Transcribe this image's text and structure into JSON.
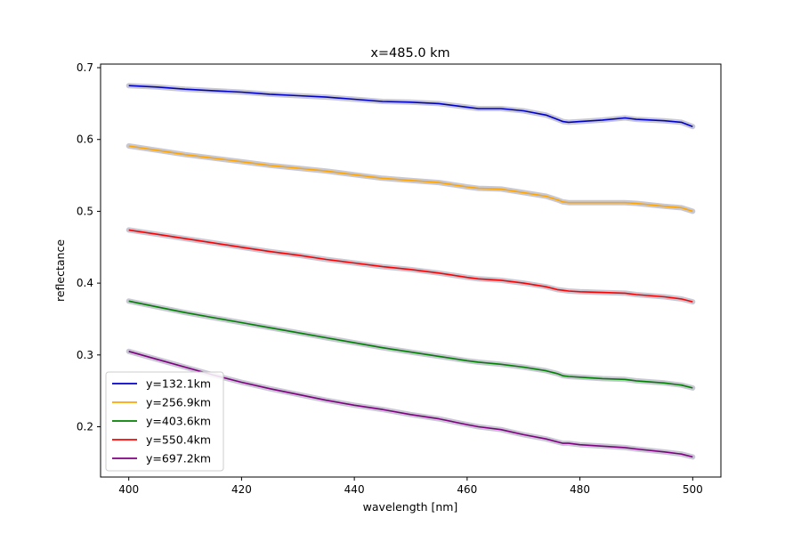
{
  "chart_data": {
    "type": "line",
    "title": "x=485.0 km",
    "xlabel": "wavelength [nm]",
    "ylabel": "reflectance",
    "xlim": [
      395,
      505
    ],
    "ylim": [
      0.13,
      0.705
    ],
    "xticks": [
      400,
      420,
      440,
      460,
      480,
      500
    ],
    "yticks": [
      0.2,
      0.3,
      0.4,
      0.5,
      0.6,
      0.7
    ],
    "xtick_labels": [
      "400",
      "420",
      "440",
      "460",
      "480",
      "500"
    ],
    "ytick_labels": [
      "0.2",
      "0.3",
      "0.4",
      "0.5",
      "0.6",
      "0.7"
    ],
    "legend_position": "lower-left",
    "grid": false,
    "band_color": "#c8c8d4",
    "x": [
      400,
      405,
      410,
      415,
      420,
      425,
      430,
      435,
      440,
      445,
      450,
      455,
      460,
      462,
      466,
      470,
      474,
      476,
      477,
      478,
      480,
      484,
      488,
      490,
      495,
      498,
      500
    ],
    "series": [
      {
        "name": "y=132.1km",
        "color": "#0000cc",
        "values": [
          0.675,
          0.673,
          0.67,
          0.668,
          0.666,
          0.663,
          0.661,
          0.659,
          0.656,
          0.653,
          0.652,
          0.65,
          0.645,
          0.643,
          0.643,
          0.64,
          0.634,
          0.628,
          0.625,
          0.624,
          0.625,
          0.627,
          0.63,
          0.628,
          0.626,
          0.624,
          0.618
        ]
      },
      {
        "name": "y=256.9km",
        "color": "#ffa500",
        "values": [
          0.591,
          0.585,
          0.579,
          0.574,
          0.569,
          0.564,
          0.56,
          0.556,
          0.551,
          0.546,
          0.543,
          0.54,
          0.534,
          0.532,
          0.531,
          0.526,
          0.521,
          0.516,
          0.513,
          0.512,
          0.512,
          0.512,
          0.512,
          0.511,
          0.507,
          0.505,
          0.5
        ]
      },
      {
        "name": "y=403.6km",
        "color": "#008000",
        "values": [
          0.375,
          0.367,
          0.359,
          0.352,
          0.345,
          0.338,
          0.331,
          0.324,
          0.317,
          0.31,
          0.304,
          0.298,
          0.292,
          0.29,
          0.287,
          0.283,
          0.278,
          0.274,
          0.271,
          0.27,
          0.269,
          0.267,
          0.266,
          0.264,
          0.261,
          0.258,
          0.254
        ]
      },
      {
        "name": "y=550.4km",
        "color": "#ff0000",
        "values": [
          0.474,
          0.468,
          0.462,
          0.456,
          0.45,
          0.444,
          0.439,
          0.433,
          0.428,
          0.423,
          0.419,
          0.414,
          0.408,
          0.406,
          0.404,
          0.4,
          0.395,
          0.391,
          0.39,
          0.389,
          0.388,
          0.387,
          0.386,
          0.384,
          0.381,
          0.378,
          0.374
        ]
      },
      {
        "name": "y=697.2km",
        "color": "#800080",
        "values": [
          0.305,
          0.294,
          0.283,
          0.272,
          0.262,
          0.253,
          0.245,
          0.237,
          0.23,
          0.224,
          0.217,
          0.211,
          0.203,
          0.2,
          0.196,
          0.189,
          0.183,
          0.179,
          0.177,
          0.177,
          0.175,
          0.173,
          0.171,
          0.169,
          0.165,
          0.162,
          0.158
        ]
      }
    ]
  }
}
